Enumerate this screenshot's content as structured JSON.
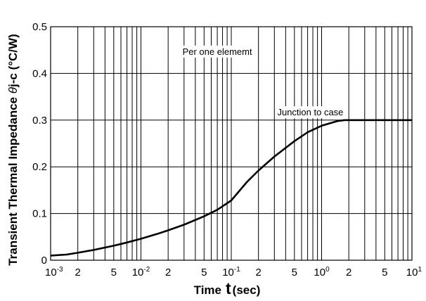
{
  "chart_data": {
    "type": "line",
    "title": "",
    "xlabel": {
      "prefix": "Time",
      "symbol": "t",
      "unit": "(sec)"
    },
    "ylabel": {
      "prefix": "Transient Thermal Impedance ",
      "symbol": "θ",
      "suffix": "j-c (°C/W)"
    },
    "x_scale": "log",
    "xlim": [
      0.001,
      10
    ],
    "ylim": [
      0,
      0.5
    ],
    "grid": true,
    "y_ticks": [
      {
        "value": 0,
        "label": "0"
      },
      {
        "value": 0.1,
        "label": "0.1"
      },
      {
        "value": 0.2,
        "label": "0.2"
      },
      {
        "value": 0.3,
        "label": "0.3"
      },
      {
        "value": 0.4,
        "label": "0.4"
      },
      {
        "value": 0.5,
        "label": "0.5"
      }
    ],
    "x_ticks": [
      {
        "value": 0.001,
        "base": "10",
        "exp": "-3"
      },
      {
        "value": 0.002,
        "base": "2",
        "exp": ""
      },
      {
        "value": 0.005,
        "base": "5",
        "exp": ""
      },
      {
        "value": 0.01,
        "base": "10",
        "exp": "-2"
      },
      {
        "value": 0.02,
        "base": "2",
        "exp": ""
      },
      {
        "value": 0.05,
        "base": "5",
        "exp": ""
      },
      {
        "value": 0.1,
        "base": "10",
        "exp": "-1"
      },
      {
        "value": 0.2,
        "base": "2",
        "exp": ""
      },
      {
        "value": 0.5,
        "base": "5",
        "exp": ""
      },
      {
        "value": 1,
        "base": "10",
        "exp": "0"
      },
      {
        "value": 2,
        "base": "2",
        "exp": ""
      },
      {
        "value": 5,
        "base": "5",
        "exp": ""
      },
      {
        "value": 10,
        "base": "10",
        "exp": "1"
      }
    ],
    "annotations": [
      {
        "text": "Per one elememt",
        "x": 0.07,
        "y": 0.44
      },
      {
        "text": "Junction to case",
        "x": 0.75,
        "y": 0.31
      }
    ],
    "series": [
      {
        "x": [
          0.001,
          0.0015,
          0.002,
          0.003,
          0.005,
          0.007,
          0.01,
          0.015,
          0.02,
          0.03,
          0.05,
          0.07,
          0.1,
          0.15,
          0.2,
          0.3,
          0.5,
          0.7,
          1.0,
          1.5,
          1.8,
          2,
          3,
          5,
          10
        ],
        "values": [
          0.01,
          0.012,
          0.016,
          0.022,
          0.031,
          0.038,
          0.046,
          0.056,
          0.064,
          0.076,
          0.094,
          0.108,
          0.128,
          0.168,
          0.192,
          0.222,
          0.255,
          0.274,
          0.288,
          0.298,
          0.3,
          0.3,
          0.3,
          0.3,
          0.3
        ]
      }
    ]
  }
}
